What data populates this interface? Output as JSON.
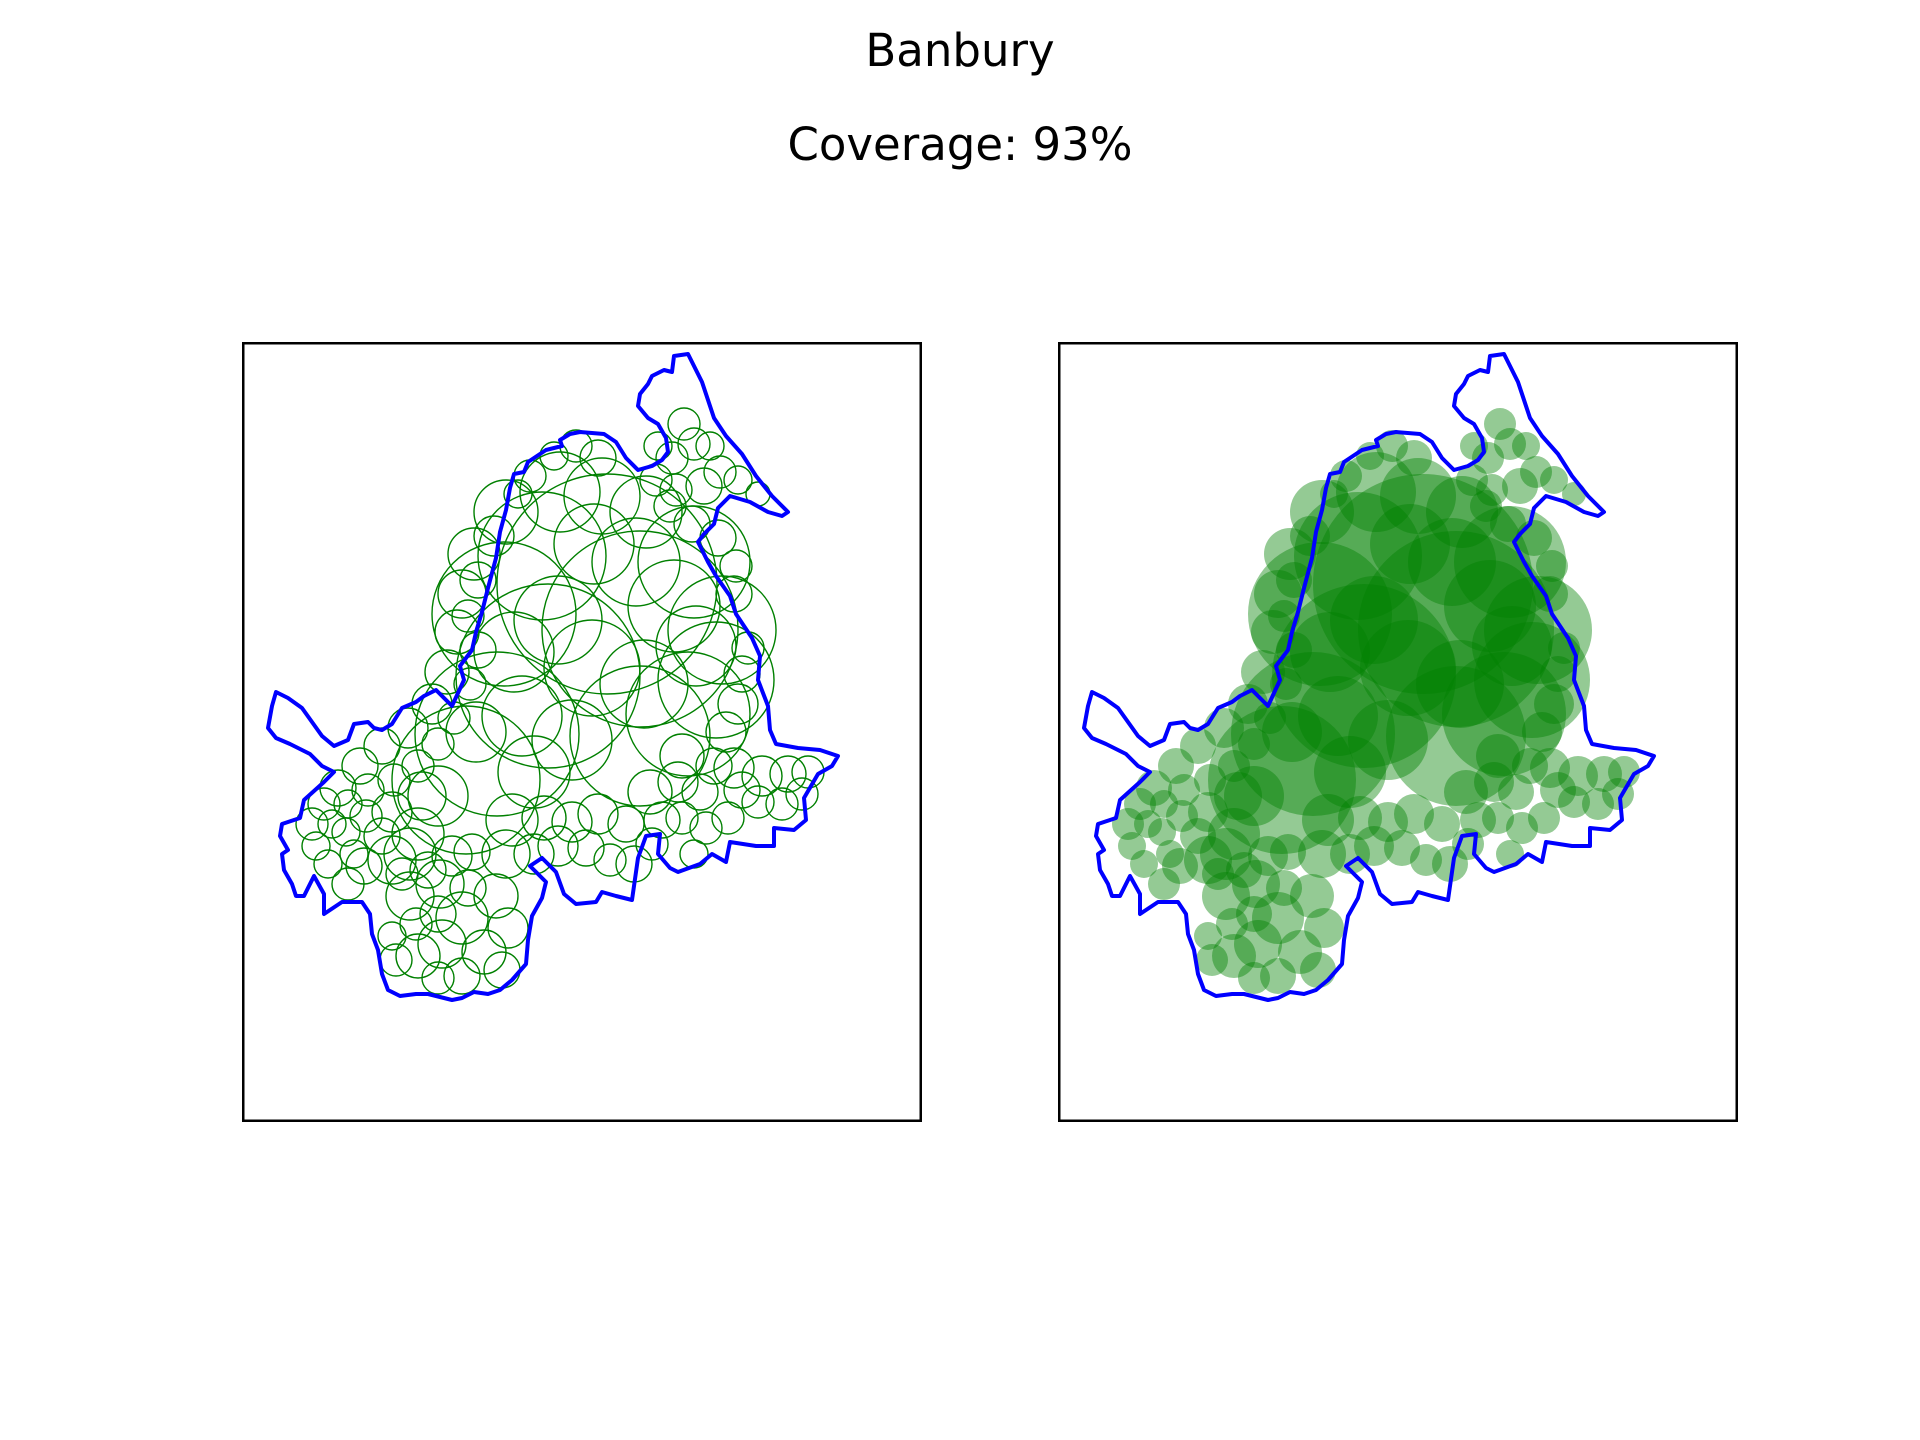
{
  "figure": {
    "title": "Banbury",
    "subtitle": "Coverage: 93%"
  },
  "colors": {
    "boundary": "#0000ff",
    "circle_stroke": "#008000",
    "circle_fill": "#008000",
    "frame": "#000000"
  },
  "panels": [
    {
      "name": "circle-outlines",
      "style": "outline"
    },
    {
      "name": "circle-filled",
      "style": "filled"
    }
  ]
}
